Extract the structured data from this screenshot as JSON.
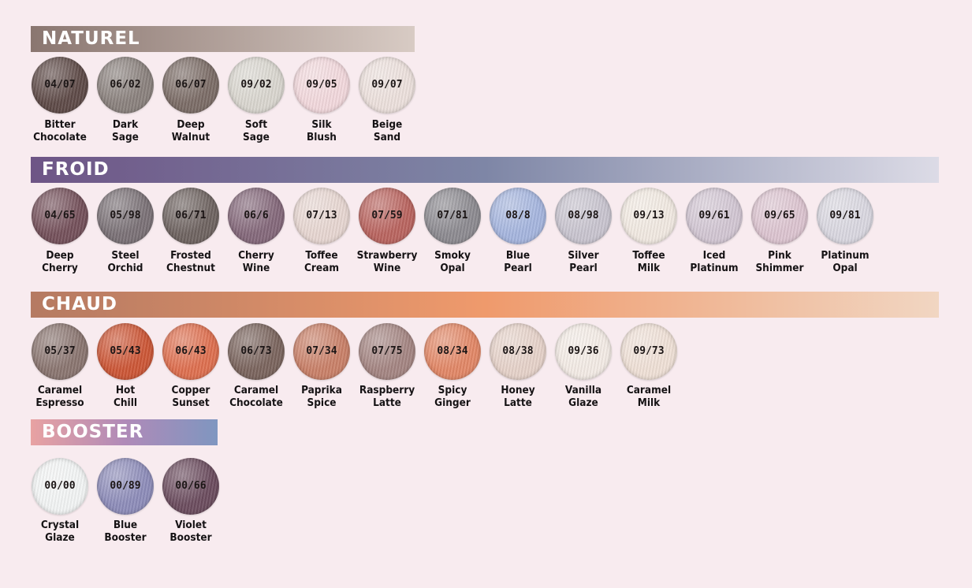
{
  "sections": [
    {
      "title": "NATUREL",
      "gradient": [
        "#8a7670",
        "#d8cbc4"
      ],
      "items": [
        {
          "code": "04/07",
          "line1": "Bitter",
          "line2": "Chocolate",
          "color": "#5e4a47"
        },
        {
          "code": "06/02",
          "line1": "Dark",
          "line2": "Sage",
          "color": "#8a817d"
        },
        {
          "code": "06/07",
          "line1": "Deep",
          "line2": "Walnut",
          "color": "#7b6c66"
        },
        {
          "code": "09/02",
          "line1": "Soft",
          "line2": "Sage",
          "color": "#d9d6cf"
        },
        {
          "code": "09/05",
          "line1": "Silk",
          "line2": "Blush",
          "color": "#f2d8dc"
        },
        {
          "code": "09/07",
          "line1": "Beige",
          "line2": "Sand",
          "color": "#ece0dc"
        }
      ]
    },
    {
      "title": "FROID",
      "gradient": [
        "#6e5586",
        "#7e86a6",
        "#dcdbe6"
      ],
      "items": [
        {
          "code": "04/65",
          "line1": "Deep",
          "line2": "Cherry",
          "color": "#74505a"
        },
        {
          "code": "05/98",
          "line1": "Steel",
          "line2": "Orchid",
          "color": "#7a7176"
        },
        {
          "code": "06/71",
          "line1": "Frosted",
          "line2": "Chestnut",
          "color": "#6e6360"
        },
        {
          "code": "06/6",
          "line1": "Cherry",
          "line2": "Wine",
          "color": "#84687a"
        },
        {
          "code": "07/13",
          "line1": "Toffee",
          "line2": "Cream",
          "color": "#e7d6d1"
        },
        {
          "code": "07/59",
          "line1": "Strawberry",
          "line2": "Wine",
          "color": "#b9645f"
        },
        {
          "code": "07/81",
          "line1": "Smoky",
          "line2": "Opal",
          "color": "#8c8a90"
        },
        {
          "code": "08/8",
          "line1": "Blue",
          "line2": "Pearl",
          "color": "#a5b5de"
        },
        {
          "code": "08/98",
          "line1": "Silver",
          "line2": "Pearl",
          "color": "#c8c4cf"
        },
        {
          "code": "09/13",
          "line1": "Toffee",
          "line2": "Milk",
          "color": "#f1e9e1"
        },
        {
          "code": "09/61",
          "line1": "Iced",
          "line2": "Platinum",
          "color": "#d2c6d3"
        },
        {
          "code": "09/65",
          "line1": "Pink",
          "line2": "Shimmer",
          "color": "#dcc4d0"
        },
        {
          "code": "09/81",
          "line1": "Platinum",
          "line2": "Opal",
          "color": "#d9d7e0"
        }
      ]
    },
    {
      "title": "CHAUD",
      "gradient": [
        "#b57a62",
        "#ef9a6c",
        "#f1d6c2"
      ],
      "items": [
        {
          "code": "05/37",
          "line1": "Caramel",
          "line2": "Espresso",
          "color": "#8a7570"
        },
        {
          "code": "05/43",
          "line1": "Hot",
          "line2": "Chill",
          "color": "#cc5636"
        },
        {
          "code": "06/43",
          "line1": "Copper",
          "line2": "Sunset",
          "color": "#de6f4f"
        },
        {
          "code": "06/73",
          "line1": "Caramel",
          "line2": "Chocolate",
          "color": "#7a645d"
        },
        {
          "code": "07/34",
          "line1": "Paprika",
          "line2": "Spice",
          "color": "#c98068"
        },
        {
          "code": "07/75",
          "line1": "Raspberry",
          "line2": "Latte",
          "color": "#a48582"
        },
        {
          "code": "08/34",
          "line1": "Spicy",
          "line2": "Ginger",
          "color": "#e28766"
        },
        {
          "code": "08/38",
          "line1": "Honey",
          "line2": "Latte",
          "color": "#e6d2c9"
        },
        {
          "code": "09/36",
          "line1": "Vanilla",
          "line2": "Glaze",
          "color": "#f3ebe5"
        },
        {
          "code": "09/73",
          "line1": "Caramel",
          "line2": "Milk",
          "color": "#efe0d6"
        }
      ]
    },
    {
      "title": "BOOSTER",
      "gradient": [
        "#e8a2a2",
        "#b08ab8",
        "#7f96c0"
      ],
      "items": [
        {
          "code": "00/00",
          "line1": "Crystal",
          "line2": "Glaze",
          "color": "#f2f4f4"
        },
        {
          "code": "00/89",
          "line1": "Blue",
          "line2": "Booster",
          "color": "#8d8cb9"
        },
        {
          "code": "00/66",
          "line1": "Violet",
          "line2": "Booster",
          "color": "#6b4c5e"
        }
      ]
    }
  ]
}
